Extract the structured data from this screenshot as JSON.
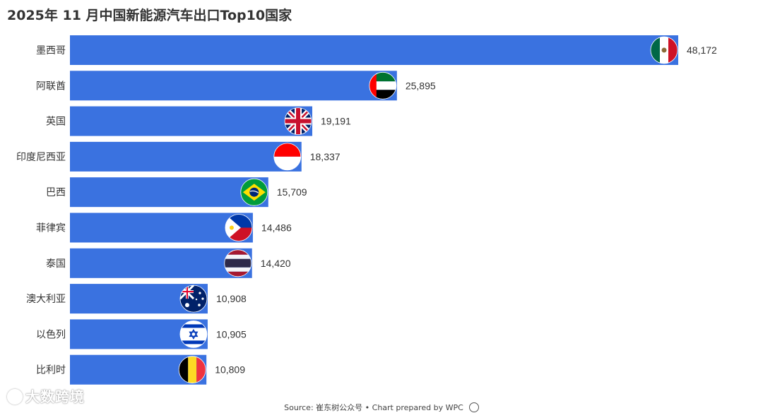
{
  "title": "2025年 11 月中国新能源汽车出口Top10国家",
  "footer": {
    "source_text": "Source: 崔东树公众号 • Chart prepared by WPC"
  },
  "watermark": {
    "text": "大数跨境"
  },
  "colors": {
    "bar": "#3a72e0",
    "label": "#333333"
  },
  "chart_data": {
    "type": "bar",
    "orientation": "horizontal",
    "categories": [
      "墨西哥",
      "阿联酋",
      "英国",
      "印度尼西亚",
      "巴西",
      "菲律宾",
      "泰国",
      "澳大利亚",
      "以色列",
      "比利时"
    ],
    "values": [
      48172,
      25895,
      19191,
      18337,
      15709,
      14486,
      14420,
      10908,
      10905,
      10809
    ],
    "value_labels": [
      "48,172",
      "25,895",
      "19,191",
      "18,337",
      "15,709",
      "14,486",
      "14,420",
      "10,908",
      "10,905",
      "10,809"
    ],
    "flags": [
      "mexico-flag-icon",
      "uae-flag-icon",
      "uk-flag-icon",
      "indonesia-flag-icon",
      "brazil-flag-icon",
      "philippines-flag-icon",
      "thailand-flag-icon",
      "australia-flag-icon",
      "israel-flag-icon",
      "belgium-flag-icon"
    ],
    "title": "2025年 11 月中国新能源汽车出口Top10国家",
    "xlabel": "",
    "ylabel": "",
    "xlim": [
      0,
      48172
    ],
    "grid": false
  }
}
